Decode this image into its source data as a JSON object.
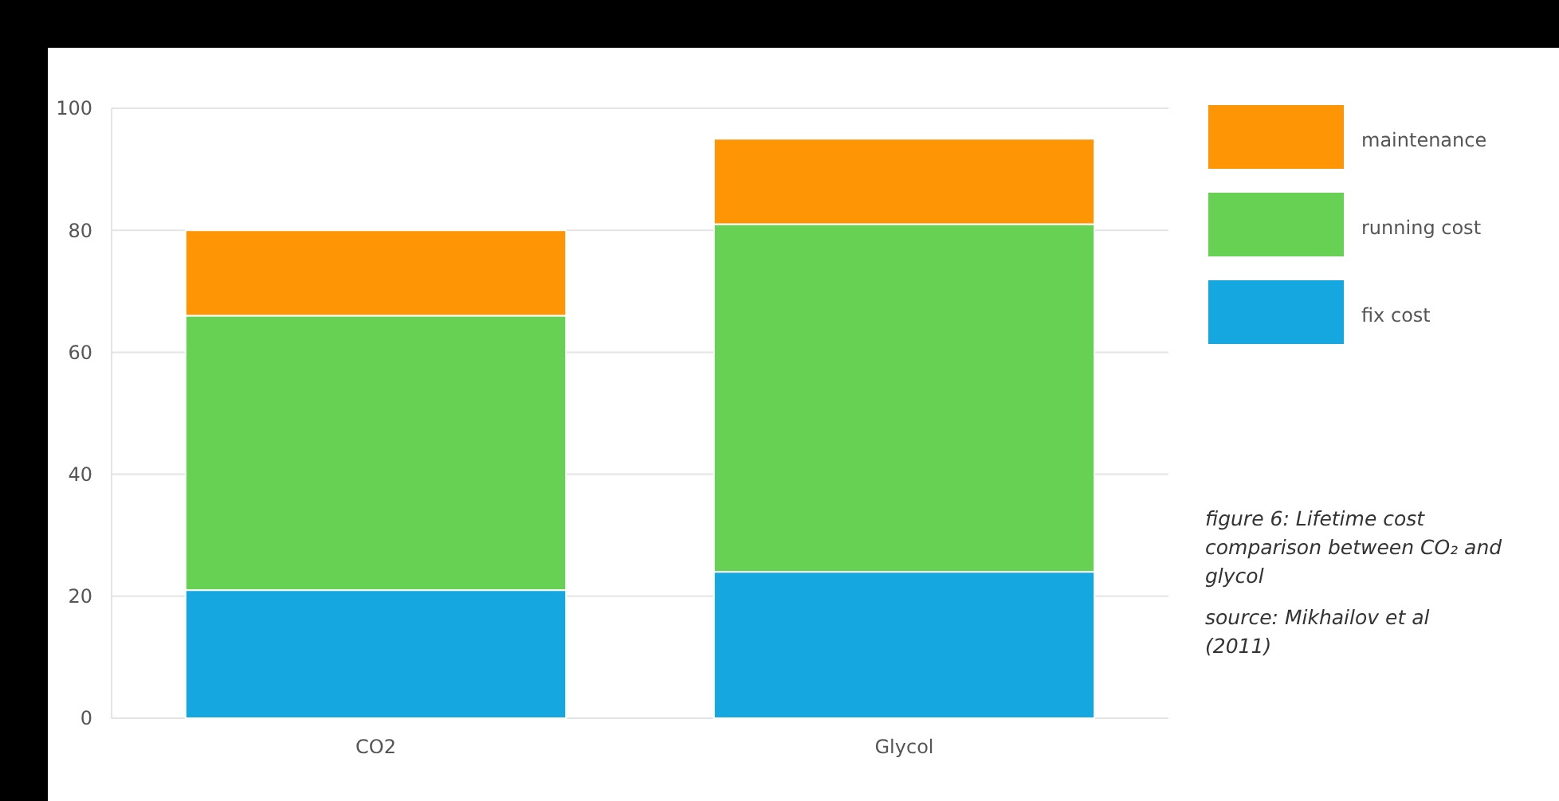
{
  "chart_data": {
    "type": "bar",
    "stacked": true,
    "categories": [
      "CO2",
      "Glycol"
    ],
    "series": [
      {
        "name": "fix cost",
        "color": "#14a7e0",
        "values": [
          21,
          24
        ]
      },
      {
        "name": "running cost",
        "color": "#66d152",
        "values": [
          45,
          57
        ]
      },
      {
        "name": "maintenance",
        "color": "#fe9505",
        "values": [
          14,
          14
        ]
      }
    ],
    "ylim": [
      0,
      100
    ],
    "yticks": [
      0,
      20,
      40,
      60,
      80,
      100
    ],
    "grid": "y",
    "legend": "right",
    "annotations": [
      "figure 6: Lifetime cost comparison between CO₂ and glycol",
      "source: Mikhailov et al (2011)"
    ]
  }
}
